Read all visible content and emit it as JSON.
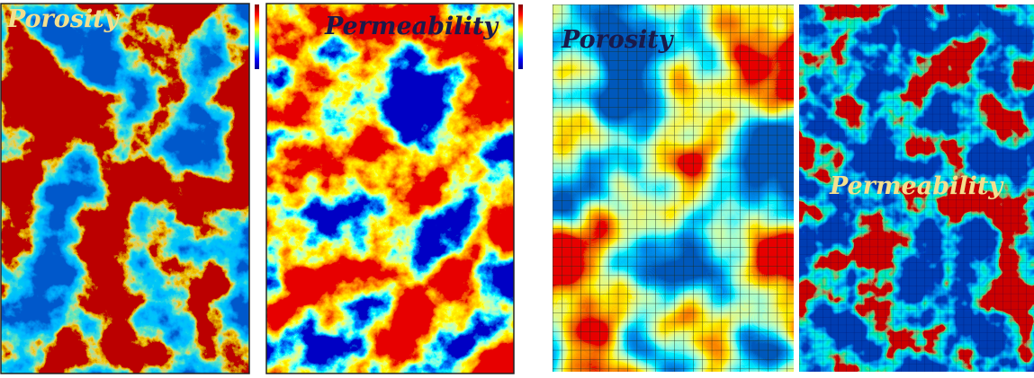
{
  "panels": [
    {
      "label": "Porosity"
    },
    {
      "label": "Permeability"
    },
    {
      "label": "Porosity"
    },
    {
      "label": "Permeability"
    }
  ]
}
